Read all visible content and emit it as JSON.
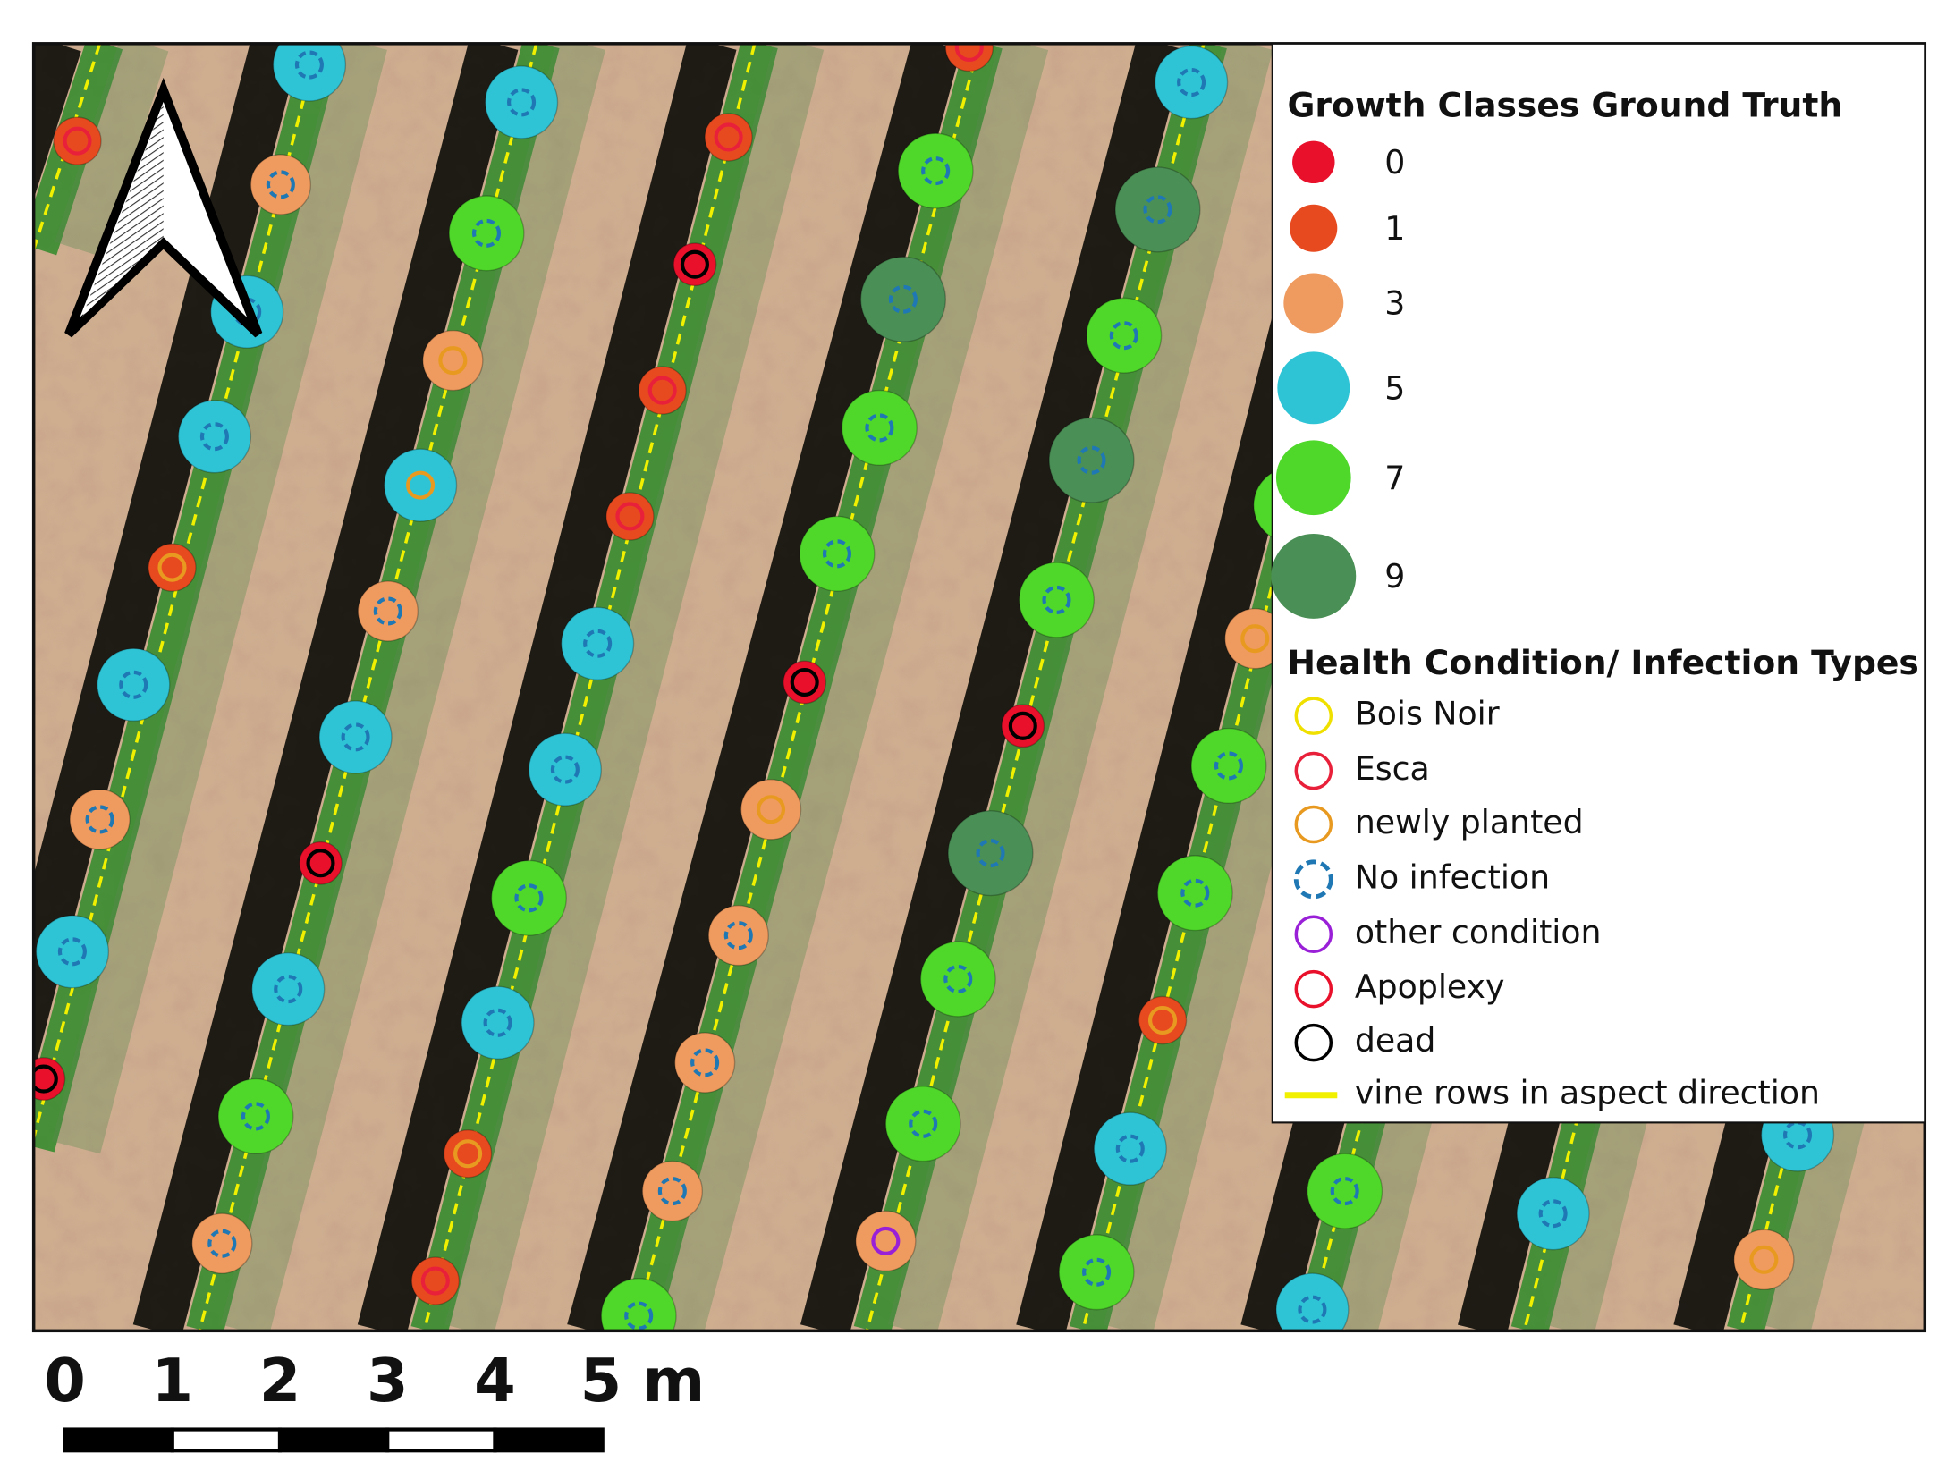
{
  "legend": {
    "growth_title": "Growth Classes Ground Truth",
    "growth_classes": [
      {
        "label": "0",
        "color": "#e8102a"
      },
      {
        "label": "1",
        "color": "#e84a20"
      },
      {
        "label": "3",
        "color": "#ef9a5e"
      },
      {
        "label": "5",
        "color": "#2ec4d6"
      },
      {
        "label": "7",
        "color": "#4fd82a"
      },
      {
        "label": "9",
        "color": "#4a8f55"
      }
    ],
    "health_title": "Health Condition/ Infection Types",
    "health_items": [
      {
        "label": "Bois Noir",
        "color": "#f0e000"
      },
      {
        "label": "Esca",
        "color": "#e8203a"
      },
      {
        "label": "newly planted",
        "color": "#e89a20"
      },
      {
        "label": "No infection",
        "color": "#1f78b4"
      },
      {
        "label": "other condition",
        "color": "#9a20d8"
      },
      {
        "label": "Apoplexy",
        "color": "#e8102a"
      },
      {
        "label": "dead",
        "color": "#000000"
      },
      {
        "label": "vine rows in aspect direction",
        "color": "#f0f000"
      }
    ]
  },
  "scale_bar": {
    "labels": [
      "0",
      "1",
      "2",
      "3",
      "4",
      "5 m"
    ]
  }
}
